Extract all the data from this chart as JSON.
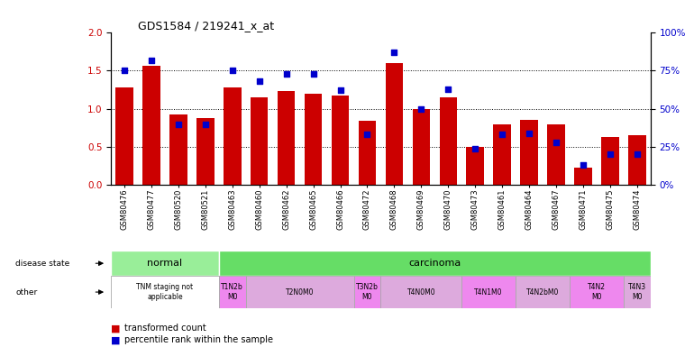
{
  "title": "GDS1584 / 219241_x_at",
  "samples": [
    "GSM80476",
    "GSM80477",
    "GSM80520",
    "GSM80521",
    "GSM80463",
    "GSM80460",
    "GSM80462",
    "GSM80465",
    "GSM80466",
    "GSM80472",
    "GSM80468",
    "GSM80469",
    "GSM80470",
    "GSM80473",
    "GSM80461",
    "GSM80464",
    "GSM80467",
    "GSM80471",
    "GSM80475",
    "GSM80474"
  ],
  "transformed_count": [
    1.28,
    1.57,
    0.92,
    0.88,
    1.28,
    1.15,
    1.23,
    1.2,
    1.17,
    0.84,
    1.6,
    1.0,
    1.15,
    0.5,
    0.8,
    0.85,
    0.8,
    0.22,
    0.63,
    0.65
  ],
  "percentile_rank": [
    75,
    82,
    40,
    40,
    75,
    68,
    73,
    73,
    62,
    33,
    87,
    50,
    63,
    24,
    33,
    34,
    28,
    13,
    20,
    20
  ],
  "ylim_left": [
    0,
    2
  ],
  "ylim_right": [
    0,
    100
  ],
  "yticks_left": [
    0,
    0.5,
    1.0,
    1.5,
    2.0
  ],
  "yticks_right": [
    0,
    25,
    50,
    75,
    100
  ],
  "bar_color": "#cc0000",
  "dot_color": "#0000cc",
  "disease_state_groups": [
    {
      "label": "normal",
      "start": 0,
      "end": 4,
      "color": "#99ee99"
    },
    {
      "label": "carcinoma",
      "start": 4,
      "end": 20,
      "color": "#66dd66"
    }
  ],
  "other_groups": [
    {
      "label": "TNM staging not\napplicable",
      "start": 0,
      "end": 4,
      "color": "#ffffff"
    },
    {
      "label": "T1N2b\nM0",
      "start": 4,
      "end": 5,
      "color": "#ee88ee"
    },
    {
      "label": "T2N0M0",
      "start": 5,
      "end": 9,
      "color": "#ddaadd"
    },
    {
      "label": "T3N2b\nM0",
      "start": 9,
      "end": 10,
      "color": "#ee88ee"
    },
    {
      "label": "T4N0M0",
      "start": 10,
      "end": 13,
      "color": "#ddaadd"
    },
    {
      "label": "T4N1M0",
      "start": 13,
      "end": 15,
      "color": "#ee88ee"
    },
    {
      "label": "T4N2bM0",
      "start": 15,
      "end": 17,
      "color": "#ddaadd"
    },
    {
      "label": "T4N2\nM0",
      "start": 17,
      "end": 19,
      "color": "#ee88ee"
    },
    {
      "label": "T4N3\nM0",
      "start": 19,
      "end": 20,
      "color": "#ddaadd"
    }
  ],
  "left_axis_color": "#cc0000",
  "right_axis_color": "#0000cc"
}
